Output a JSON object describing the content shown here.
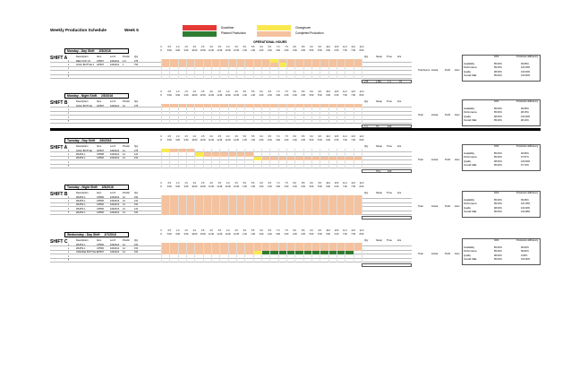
{
  "title": "Weekly Production Schedule",
  "week": "Week 5",
  "legend": [
    {
      "label": "Downtime",
      "color": "#e53935"
    },
    {
      "label": "Changeover",
      "color": "#f9e94e"
    },
    {
      "label": "Planned Production",
      "color": "#2e7d32"
    },
    {
      "label": "Completed Production",
      "color": "#f4c29e"
    }
  ],
  "operational_hours_label": "OPERATIONAL HOURS",
  "hour_ticks": [
    "0",
    "0.5",
    "1.0",
    "1.5",
    "2.0",
    "2.5",
    "3.0",
    "3.5",
    "4.0",
    "4.5",
    "5.0",
    "5.5",
    "6.0",
    "6.5",
    "7.0",
    "7.5",
    "8.0",
    "8.5",
    "9.0",
    "9.5",
    "10.0",
    "10.5",
    "11.0",
    "11.5",
    "12.0"
  ],
  "time_ticks": [
    "8",
    "8:30",
    "9:00",
    "9:30",
    "10:00",
    "10:30",
    "11:00",
    "11:30",
    "12:00",
    "12:30",
    "1:00",
    "1:30",
    "2:00",
    "2:30",
    "3:00",
    "3:30",
    "4:00",
    "4:30",
    "5:00",
    "5:30",
    "6:00",
    "6:30",
    "7:00",
    "7:30",
    "8:00"
  ],
  "col_headers": [
    "Description",
    "Item",
    "Lot #",
    "Pcs/Hr",
    "Qty"
  ],
  "right_headers": [
    "Qty",
    "Setup",
    "Time",
    "Hrs"
  ],
  "metric_headers": [
    "Shift",
    "Production Efficiency"
  ],
  "metrics": [
    "Availability",
    "Performance",
    "Quality",
    "Overall OEE"
  ],
  "sections": [
    {
      "day": "Monday - Day Shift",
      "date": "2/5/2016",
      "shift": "SHIFT A",
      "rows": [
        [
          "1",
          "RED CUP 1.5",
          "CP507",
          "1040412",
          "1.5",
          "275"
        ],
        [
          "2",
          "GOLF BOTTLE 2",
          "GP507",
          "1040412",
          "9",
          "750"
        ],
        [
          "3",
          "",
          "",
          "",
          "",
          ""
        ],
        [
          "4",
          "",
          "",
          "",
          "",
          ""
        ],
        [
          "5",
          "",
          "",
          "",
          "",
          ""
        ]
      ],
      "totals": [
        "275",
        "1750",
        "7.4",
        "75"
      ],
      "summary": [
        "Total Hours",
        "Actual",
        "Profit",
        "Hour"
      ],
      "metric_vals": [
        [
          "85.00%",
          "99.95%"
        ],
        [
          "85.00%",
          "100.45%"
        ],
        [
          "98.00%",
          "100.00%"
        ],
        [
          "85.00%",
          "100.90%"
        ]
      ]
    },
    {
      "day": "Monday - Night Shift",
      "date": "2/5/2016",
      "shift": "SHIFT B",
      "rows": [
        [
          "1",
          "GOLF BOTTLE",
          "GP507",
          "1040412",
          "12",
          "275"
        ],
        [
          "2",
          "",
          "",
          "",
          "",
          ""
        ],
        [
          "3",
          "",
          "",
          "",
          "",
          ""
        ],
        [
          "4",
          "",
          "",
          "",
          "",
          ""
        ],
        [
          "5",
          "",
          "",
          "",
          "",
          ""
        ]
      ],
      "totals": [
        "7.4",
        "75",
        "100",
        ""
      ],
      "summary": [
        "Total",
        "Actual",
        "Profit",
        "Hour"
      ],
      "metric_vals": [
        [
          "85.00%",
          "99.95%"
        ],
        [
          "85.00%",
          "98.15%"
        ],
        [
          "98.00%",
          "100.00%"
        ],
        [
          "85.00%",
          "98.10%"
        ]
      ]
    },
    {
      "day": "Tuesday - Day Shift",
      "date": "2/6/2016",
      "shift": "SHIFT A",
      "rows": [
        [
          "1",
          "GOLF BOTTLE",
          "GP507",
          "1040412",
          "12",
          "275"
        ],
        [
          "2",
          "WHITE 1",
          "CP508",
          "1040412",
          "12",
          "120"
        ],
        [
          "3",
          "WHITE 1",
          "CP506",
          "1040413",
          "12",
          "150"
        ],
        [
          "4",
          "",
          "",
          "",
          "",
          ""
        ],
        [
          "5",
          "",
          "",
          "",
          "",
          ""
        ]
      ],
      "totals": [
        "",
        "75.4",
        "100",
        ""
      ],
      "summary": [
        "Total",
        "Actual",
        "Profit",
        "Hour"
      ],
      "metric_vals": [
        [
          "85.00%",
          "99.95%"
        ],
        [
          "85.00%",
          "97.97%"
        ],
        [
          "98.00%",
          "100.00%"
        ],
        [
          "85.00%",
          "97.70%"
        ]
      ]
    },
    {
      "day": "Tuesday - Night Shift",
      "date": "2/6/2016",
      "shift": "SHIFT B",
      "rows": [
        [
          "1",
          "WHITE 1",
          "CP506",
          "1040413",
          "12",
          "150"
        ],
        [
          "2",
          "WHITE 1",
          "CP506",
          "1040413",
          "12",
          "120"
        ],
        [
          "3",
          "WHITE 1",
          "CP506",
          "1040413",
          "12",
          "150"
        ],
        [
          "4",
          "WHITE 1",
          "CP506",
          "1040413",
          "12",
          "120"
        ],
        [
          "5",
          "WHITE 1",
          "CP506",
          "1040413",
          "12",
          "150"
        ]
      ],
      "totals": [
        "",
        "",
        "",
        ""
      ],
      "summary": [
        "Total",
        "Actual",
        "Profit",
        "Hour"
      ],
      "metric_vals": [
        [
          "85.00%",
          "99.95%"
        ],
        [
          "85.00%",
          "101.05%"
        ],
        [
          "98.00%",
          "100.00%"
        ],
        [
          "85.00%",
          "100.98%"
        ]
      ]
    },
    {
      "day": "Wednesday - Day Shift",
      "date": "2/7/2016",
      "shift": "SHIFT C",
      "rows": [
        [
          "1",
          "WHITE 1",
          "CP506",
          "1040413",
          "12",
          "150"
        ],
        [
          "2",
          "WHITE 1",
          "CP506",
          "1040413",
          "12",
          "150"
        ],
        [
          "3",
          "ORANGE BOTTLE 1",
          "GP507",
          "1040413",
          "12",
          "150"
        ],
        [
          "4",
          "",
          "",
          "",
          "",
          ""
        ],
        [
          "5",
          "",
          "",
          "",
          "",
          ""
        ]
      ],
      "totals": [
        "",
        "",
        "",
        ""
      ],
      "summary": [
        "Total",
        "Actual",
        "Profit",
        "Hour"
      ],
      "metric_vals": [
        [
          "85.00%",
          "99.93%"
        ],
        [
          "85.00%",
          "99.82%"
        ],
        [
          "98.00%",
          "0.00%"
        ],
        [
          "85.00%",
          "100.00%"
        ]
      ]
    }
  ]
}
